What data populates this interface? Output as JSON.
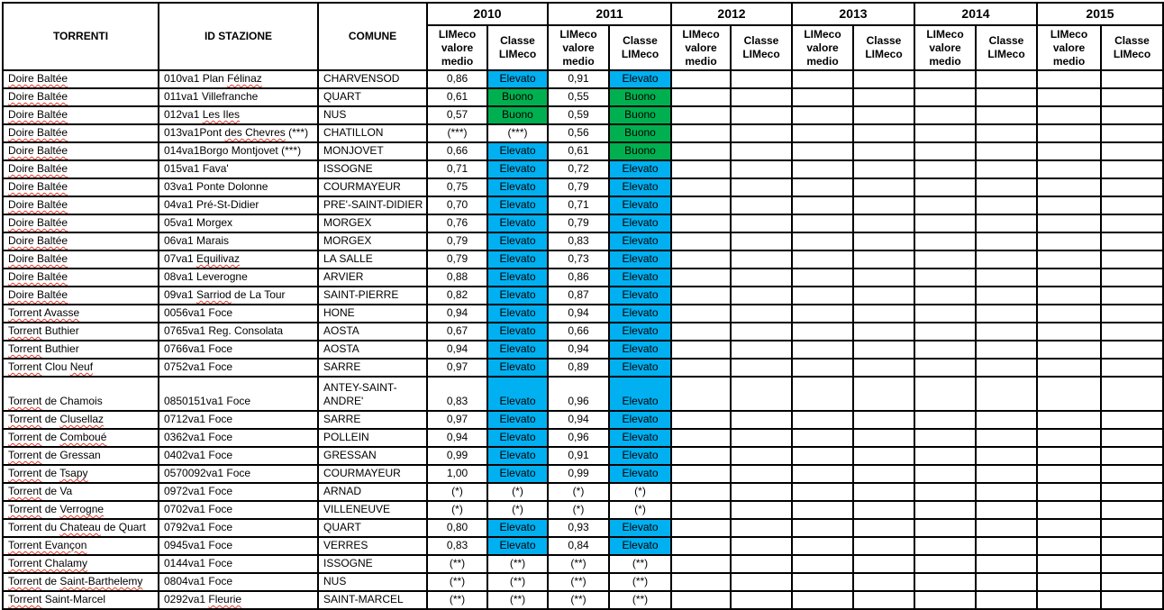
{
  "table": {
    "columns": [
      "TORRENTI",
      "ID STAZIONE",
      "COMUNE"
    ],
    "years": [
      "2010",
      "2011",
      "2012",
      "2013",
      "2014",
      "2015"
    ],
    "sub_headers": {
      "value": "LIMeco valore medio",
      "classe": "Classe LIMeco"
    },
    "class_colors": {
      "Elevato": "#00B0F0",
      "Buono": "#00B050"
    },
    "spellcheck_underline_color": "#E03C31",
    "border_color": "#000000",
    "rows": [
      {
        "torrente": [
          [
            "Doire Baltée",
            true
          ]
        ],
        "stazione": [
          [
            "010va1 Plan ",
            false
          ],
          [
            "Félinaz",
            true
          ]
        ],
        "comune": "CHARVENSOD",
        "tall": false,
        "values": {
          "2010": [
            "0,86",
            "Elevato"
          ],
          "2011": [
            "0,91",
            "Elevato"
          ]
        }
      },
      {
        "torrente": [
          [
            "Doire Baltée",
            true
          ]
        ],
        "stazione": [
          [
            "011va1 Villefranche",
            false
          ]
        ],
        "comune": "QUART",
        "tall": false,
        "values": {
          "2010": [
            "0,61",
            "Buono"
          ],
          "2011": [
            "0,55",
            "Buono"
          ]
        }
      },
      {
        "torrente": [
          [
            "Doire Baltée",
            true
          ]
        ],
        "stazione": [
          [
            "012va1 ",
            false
          ],
          [
            "Les Iles",
            true
          ]
        ],
        "comune": "NUS",
        "tall": false,
        "values": {
          "2010": [
            "0,57",
            "Buono"
          ],
          "2011": [
            "0,59",
            "Buono"
          ]
        }
      },
      {
        "torrente": [
          [
            "Doire Baltée",
            true
          ]
        ],
        "stazione": [
          [
            "013va1Pont ",
            false
          ],
          [
            "des Chevres",
            true
          ],
          [
            " (***)",
            false
          ]
        ],
        "comune": "CHATILLON",
        "tall": false,
        "values": {
          "2010": [
            "(***)",
            "(***)"
          ],
          "2011": [
            "0,56",
            "Buono"
          ]
        }
      },
      {
        "torrente": [
          [
            "Doire Baltée",
            true
          ]
        ],
        "stazione": [
          [
            "014va1Borgo Montjovet (***)",
            false
          ]
        ],
        "comune": "MONJOVET",
        "tall": false,
        "values": {
          "2010": [
            "0,66",
            "Elevato"
          ],
          "2011": [
            "0,61",
            "Buono"
          ]
        }
      },
      {
        "torrente": [
          [
            "Doire Baltée",
            true
          ]
        ],
        "stazione": [
          [
            "015va1 Fava'",
            false
          ]
        ],
        "comune": "ISSOGNE",
        "tall": false,
        "values": {
          "2010": [
            "0,71",
            "Elevato"
          ],
          "2011": [
            "0,72",
            "Elevato"
          ]
        }
      },
      {
        "torrente": [
          [
            "Doire Baltée",
            true
          ]
        ],
        "stazione": [
          [
            "03va1 Ponte Dolonne",
            false
          ]
        ],
        "comune": "COURMAYEUR",
        "tall": false,
        "values": {
          "2010": [
            "0,75",
            "Elevato"
          ],
          "2011": [
            "0,79",
            "Elevato"
          ]
        }
      },
      {
        "torrente": [
          [
            "Doire Baltée",
            true
          ]
        ],
        "stazione": [
          [
            "04va1 Pré-St-Didier",
            false
          ]
        ],
        "comune": "PRE'-SAINT-DIDIER",
        "tall": false,
        "values": {
          "2010": [
            "0,70",
            "Elevato"
          ],
          "2011": [
            "0,71",
            "Elevato"
          ]
        }
      },
      {
        "torrente": [
          [
            "Doire Baltée",
            true
          ]
        ],
        "stazione": [
          [
            "05va1 Morgex",
            false
          ]
        ],
        "comune": "MORGEX",
        "tall": false,
        "values": {
          "2010": [
            "0,76",
            "Elevato"
          ],
          "2011": [
            "0,79",
            "Elevato"
          ]
        }
      },
      {
        "torrente": [
          [
            "Doire Baltée",
            true
          ]
        ],
        "stazione": [
          [
            "06va1 Marais",
            false
          ]
        ],
        "comune": "MORGEX",
        "tall": false,
        "values": {
          "2010": [
            "0,79",
            "Elevato"
          ],
          "2011": [
            "0,83",
            "Elevato"
          ]
        }
      },
      {
        "torrente": [
          [
            "Doire Baltée",
            true
          ]
        ],
        "stazione": [
          [
            "07va1 ",
            false
          ],
          [
            "Equilivaz",
            true
          ]
        ],
        "comune": "LA SALLE",
        "tall": false,
        "values": {
          "2010": [
            "0,79",
            "Elevato"
          ],
          "2011": [
            "0,73",
            "Elevato"
          ]
        }
      },
      {
        "torrente": [
          [
            "Doire Baltée",
            true
          ]
        ],
        "stazione": [
          [
            "08va1 Leverogne",
            false
          ]
        ],
        "comune": "ARVIER",
        "tall": false,
        "values": {
          "2010": [
            "0,88",
            "Elevato"
          ],
          "2011": [
            "0,86",
            "Elevato"
          ]
        }
      },
      {
        "torrente": [
          [
            "Doire Baltée",
            true
          ]
        ],
        "stazione": [
          [
            "09va1 ",
            false
          ],
          [
            "Sarriod",
            true
          ],
          [
            " de La Tour",
            false
          ]
        ],
        "comune": "SAINT-PIERRE",
        "tall": false,
        "values": {
          "2010": [
            "0,82",
            "Elevato"
          ],
          "2011": [
            "0,87",
            "Elevato"
          ]
        }
      },
      {
        "torrente": [
          [
            "Torrent Avasse",
            true
          ]
        ],
        "stazione": [
          [
            "0056va1 Foce",
            false
          ]
        ],
        "comune": "HONE",
        "tall": false,
        "values": {
          "2010": [
            "0,94",
            "Elevato"
          ],
          "2011": [
            "0,94",
            "Elevato"
          ]
        }
      },
      {
        "torrente": [
          [
            "Torrent",
            true
          ],
          [
            " Buthier",
            false
          ]
        ],
        "stazione": [
          [
            "0765va1 Reg. Consolata",
            false
          ]
        ],
        "comune": "AOSTA",
        "tall": false,
        "values": {
          "2010": [
            "0,67",
            "Elevato"
          ],
          "2011": [
            "0,66",
            "Elevato"
          ]
        }
      },
      {
        "torrente": [
          [
            "Torrent",
            true
          ],
          [
            " Buthier",
            false
          ]
        ],
        "stazione": [
          [
            "0766va1 Foce",
            false
          ]
        ],
        "comune": "AOSTA",
        "tall": false,
        "values": {
          "2010": [
            "0,94",
            "Elevato"
          ],
          "2011": [
            "0,94",
            "Elevato"
          ]
        }
      },
      {
        "torrente": [
          [
            "Torrent",
            true
          ],
          [
            " Clou ",
            false
          ],
          [
            "Neuf",
            true
          ]
        ],
        "stazione": [
          [
            "0752va1 Foce",
            false
          ]
        ],
        "comune": "SARRE",
        "tall": false,
        "values": {
          "2010": [
            "0,97",
            "Elevato"
          ],
          "2011": [
            "0,89",
            "Elevato"
          ]
        }
      },
      {
        "torrente": [
          [
            "Torrent",
            true
          ],
          [
            " de Chamois",
            false
          ]
        ],
        "stazione": [
          [
            "0850151va1 Foce",
            false
          ]
        ],
        "comune": "ANTEY-SAINT-ANDRE'",
        "tall": true,
        "values": {
          "2010": [
            "0,83",
            "Elevato"
          ],
          "2011": [
            "0,96",
            "Elevato"
          ]
        }
      },
      {
        "torrente": [
          [
            "Torrent",
            true
          ],
          [
            " de ",
            false
          ],
          [
            "Clusellaz",
            true
          ]
        ],
        "stazione": [
          [
            "0712va1 Foce",
            false
          ]
        ],
        "comune": "SARRE",
        "tall": false,
        "values": {
          "2010": [
            "0,97",
            "Elevato"
          ],
          "2011": [
            "0,94",
            "Elevato"
          ]
        }
      },
      {
        "torrente": [
          [
            "Torrent",
            true
          ],
          [
            " de ",
            false
          ],
          [
            "Comboué",
            true
          ]
        ],
        "stazione": [
          [
            "0362va1 Foce",
            false
          ]
        ],
        "comune": "POLLEIN",
        "tall": false,
        "values": {
          "2010": [
            "0,94",
            "Elevato"
          ],
          "2011": [
            "0,96",
            "Elevato"
          ]
        }
      },
      {
        "torrente": [
          [
            "Torrent",
            true
          ],
          [
            " de Gressan",
            false
          ]
        ],
        "stazione": [
          [
            "0402va1 Foce",
            false
          ]
        ],
        "comune": "GRESSAN",
        "tall": false,
        "values": {
          "2010": [
            "0,99",
            "Elevato"
          ],
          "2011": [
            "0,91",
            "Elevato"
          ]
        }
      },
      {
        "torrente": [
          [
            "Torrent",
            true
          ],
          [
            " de ",
            false
          ],
          [
            "Tsapy",
            true
          ]
        ],
        "stazione": [
          [
            "0570092va1 Foce",
            false
          ]
        ],
        "comune": "COURMAYEUR",
        "tall": false,
        "values": {
          "2010": [
            "1,00",
            "Elevato"
          ],
          "2011": [
            "0,99",
            "Elevato"
          ]
        }
      },
      {
        "torrente": [
          [
            "Torrent",
            true
          ],
          [
            " de Va",
            false
          ]
        ],
        "stazione": [
          [
            "0972va1 Foce",
            false
          ]
        ],
        "comune": "ARNAD",
        "tall": false,
        "values": {
          "2010": [
            "(*)",
            "(*)"
          ],
          "2011": [
            "(*)",
            "(*)"
          ]
        }
      },
      {
        "torrente": [
          [
            "Torrent",
            true
          ],
          [
            " de ",
            false
          ],
          [
            "Verrogne",
            true
          ]
        ],
        "stazione": [
          [
            "0702va1 Foce",
            false
          ]
        ],
        "comune": "VILLENEUVE",
        "tall": false,
        "values": {
          "2010": [
            "(*)",
            "(*)"
          ],
          "2011": [
            "(*)",
            "(*)"
          ]
        }
      },
      {
        "torrente": [
          [
            "Torrent du ",
            false
          ],
          [
            "Chateau",
            true
          ],
          [
            " de Quart",
            false
          ]
        ],
        "stazione": [
          [
            "0792va1 Foce",
            false
          ]
        ],
        "comune": "QUART",
        "tall": false,
        "values": {
          "2010": [
            "0,80",
            "Elevato"
          ],
          "2011": [
            "0,93",
            "Elevato"
          ]
        }
      },
      {
        "torrente": [
          [
            "Torrent Evançon",
            true
          ]
        ],
        "stazione": [
          [
            "0945va1 Foce",
            false
          ]
        ],
        "comune": "VERRES",
        "tall": false,
        "values": {
          "2010": [
            "0,83",
            "Elevato"
          ],
          "2011": [
            "0,84",
            "Elevato"
          ]
        }
      },
      {
        "torrente": [
          [
            "Torrent Chalamy",
            true
          ]
        ],
        "stazione": [
          [
            "0144va1 Foce",
            false
          ]
        ],
        "comune": "ISSOGNE",
        "tall": false,
        "values": {
          "2010": [
            "(**)",
            "(**)"
          ],
          "2011": [
            "(**)",
            "(**)"
          ]
        }
      },
      {
        "torrente": [
          [
            "Torrent",
            true
          ],
          [
            " de ",
            false
          ],
          [
            "Saint-Barthelemy",
            true
          ]
        ],
        "stazione": [
          [
            "0804va1 Foce",
            false
          ]
        ],
        "comune": "NUS",
        "tall": false,
        "values": {
          "2010": [
            "(**)",
            "(**)"
          ],
          "2011": [
            "(**)",
            "(**)"
          ]
        }
      },
      {
        "torrente": [
          [
            "Torrent",
            true
          ],
          [
            " Saint-Marcel",
            false
          ]
        ],
        "stazione": [
          [
            "0292va1 ",
            false
          ],
          [
            "Fleurie",
            true
          ]
        ],
        "comune": "SAINT-MARCEL",
        "tall": false,
        "values": {
          "2010": [
            "(**)",
            "(**)"
          ],
          "2011": [
            "(**)",
            "(**)"
          ]
        }
      }
    ]
  }
}
